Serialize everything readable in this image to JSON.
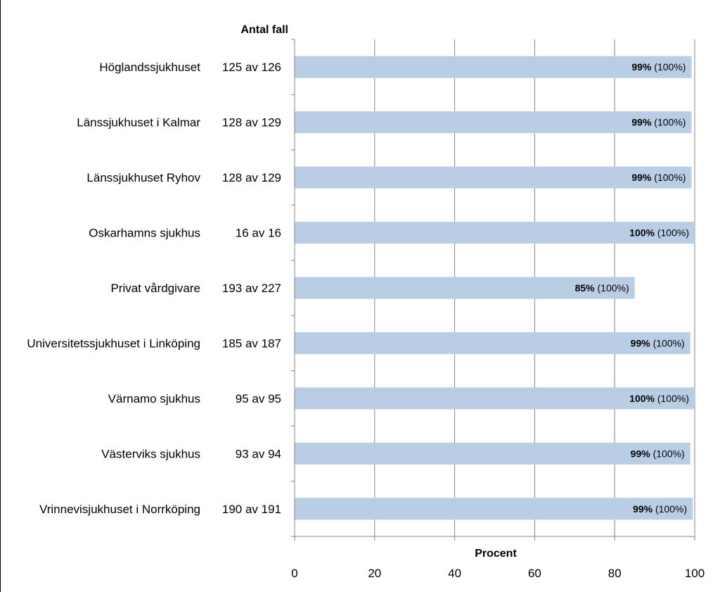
{
  "chart_data": {
    "type": "bar",
    "orientation": "horizontal",
    "categories": [
      "Höglandssjukhuset",
      "Länssjukhuset i Kalmar",
      "Länssjukhuset Ryhov",
      "Oskarhamns sjukhus",
      "Privat vårdgivare",
      "Universitetssjukhuset i Linköping",
      "Värnamo sjukhus",
      "Västerviks sjukhus",
      "Vrinnevisjukhuset i Norrköping"
    ],
    "counts": [
      "125 av 126",
      "128 av 129",
      "128 av 129",
      "16 av 16",
      "193 av 227",
      "185 av 187",
      "95 av 95",
      "93 av 94",
      "190 av 191"
    ],
    "values": [
      99.2,
      99.2,
      99.2,
      100,
      85.0,
      98.9,
      100,
      98.9,
      99.5
    ],
    "value_labels": [
      "99%",
      "99%",
      "99%",
      "100%",
      "85%",
      "99%",
      "100%",
      "99%",
      "99%"
    ],
    "secondary_labels": [
      "(100%)",
      "(100%)",
      "(100%)",
      "(100%)",
      "(100%)",
      "(100%)",
      "(100%)",
      "(100%)",
      "(100%)"
    ],
    "count_header": "Antal fall",
    "xlabel": "Procent",
    "xlim": [
      0,
      100
    ],
    "xticks": [
      "0",
      "20",
      "40",
      "60",
      "80",
      "100"
    ],
    "grid": true,
    "bar_color": "#b9cde5",
    "grid_color": "#868686"
  }
}
